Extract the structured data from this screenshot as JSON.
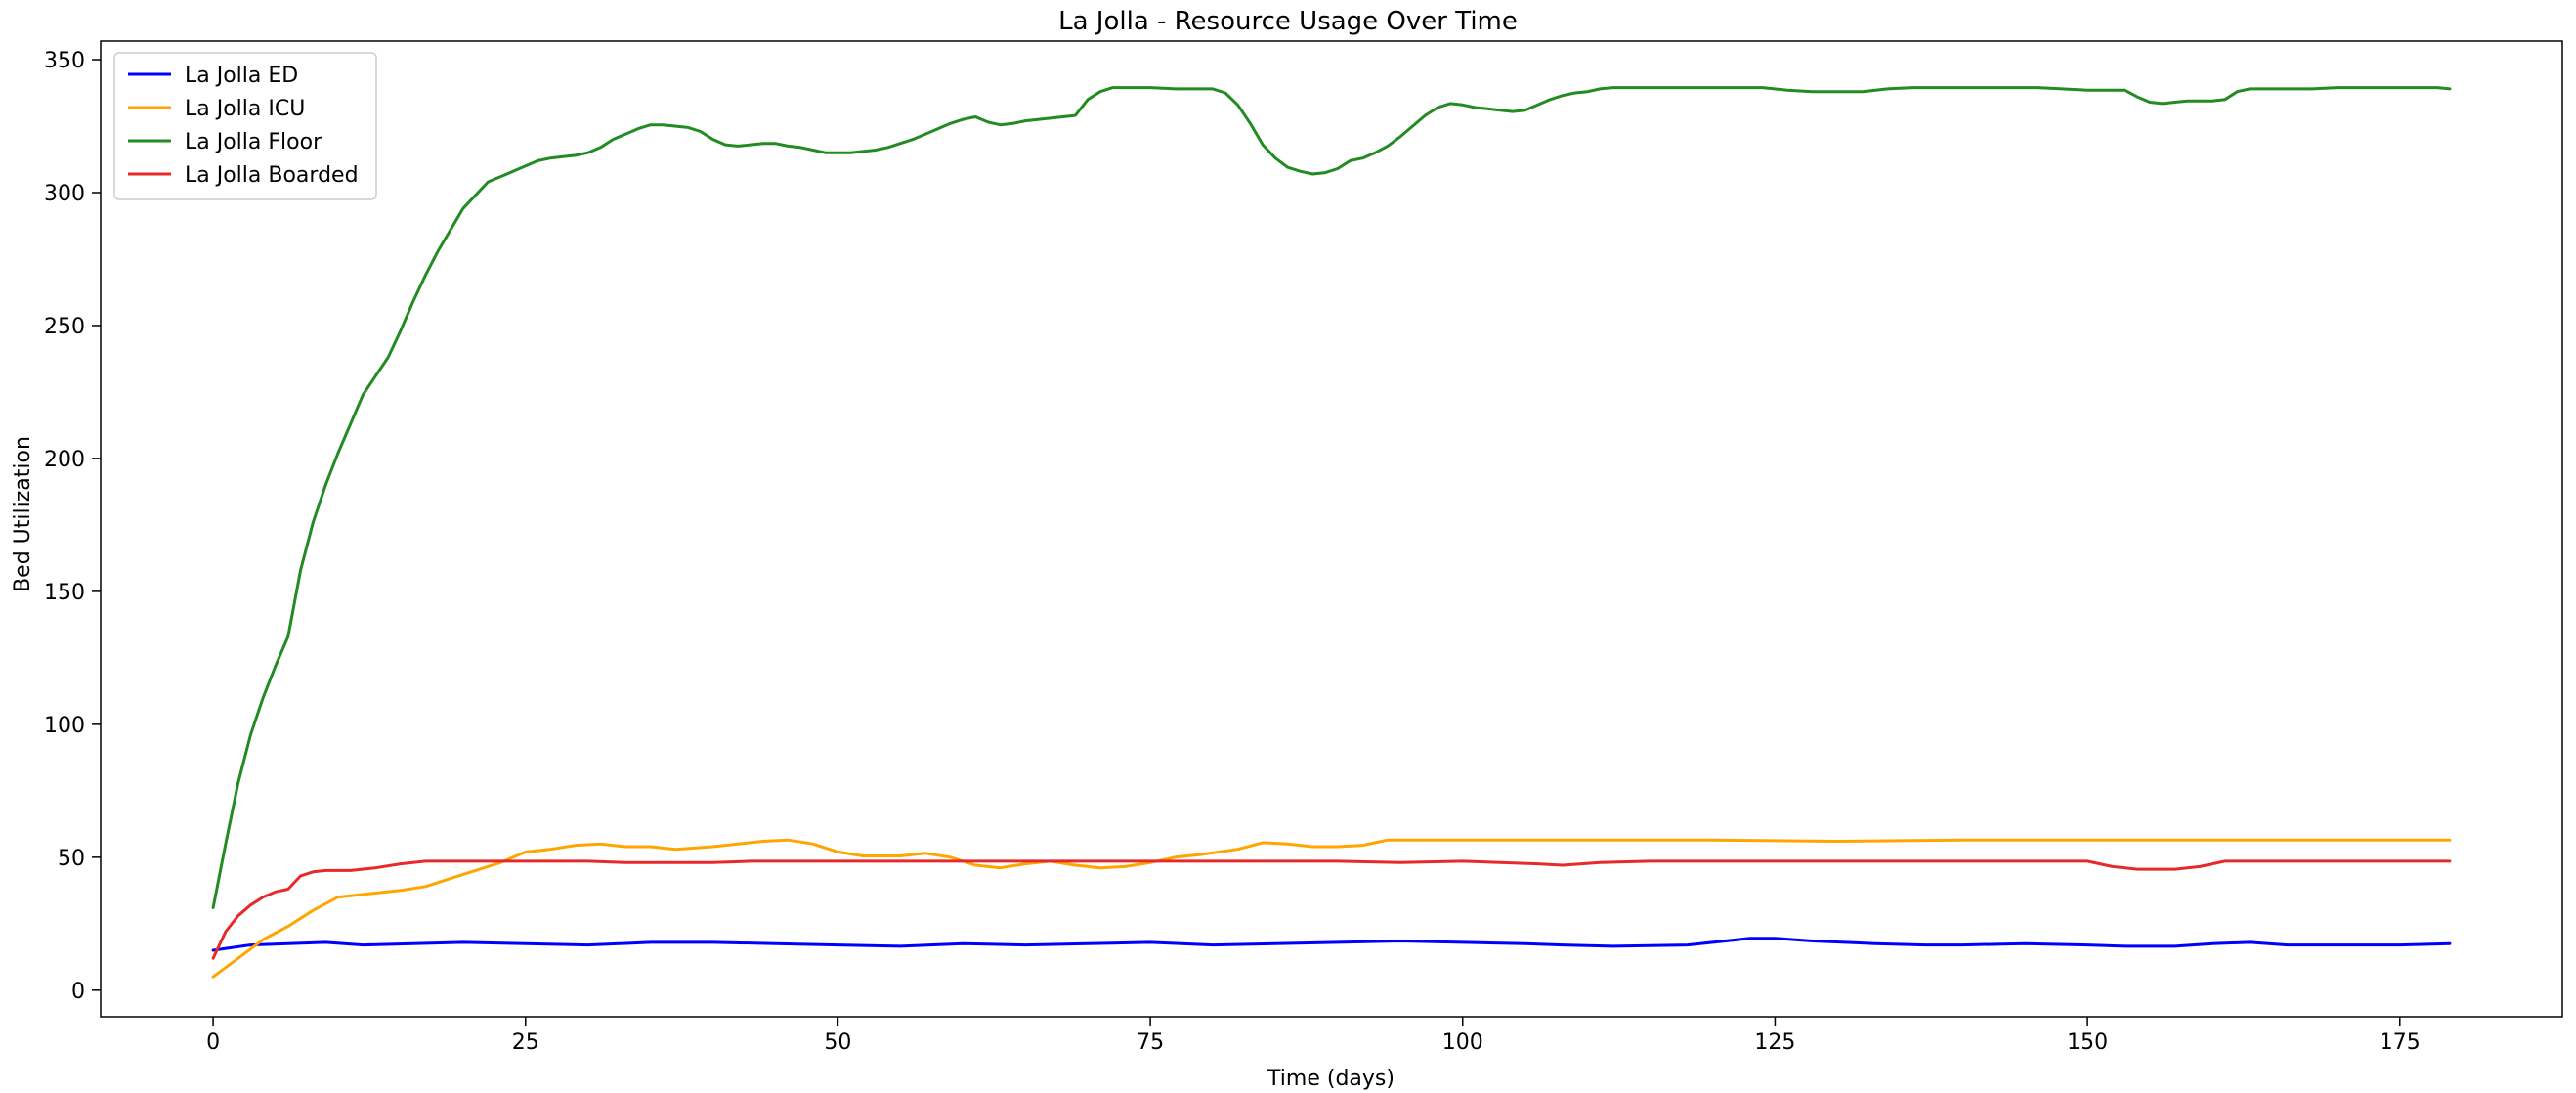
{
  "chart_data": {
    "type": "line",
    "title": "La Jolla - Resource Usage Over Time",
    "xlabel": "Time (days)",
    "ylabel": "Bed Utilization",
    "xlim": [
      -9,
      188
    ],
    "ylim": [
      -10,
      357
    ],
    "xticks": [
      0,
      25,
      50,
      75,
      100,
      125,
      150,
      175
    ],
    "yticks": [
      0,
      50,
      100,
      150,
      200,
      250,
      300,
      350
    ],
    "grid": false,
    "legend_position": "top-left",
    "series": [
      {
        "name": "La Jolla ED",
        "color": "#0000ff",
        "points": [
          [
            0,
            15
          ],
          [
            3,
            17
          ],
          [
            6,
            17.5
          ],
          [
            9,
            18
          ],
          [
            12,
            17
          ],
          [
            16,
            17.5
          ],
          [
            20,
            18
          ],
          [
            25,
            17.5
          ],
          [
            30,
            17
          ],
          [
            35,
            18
          ],
          [
            40,
            18
          ],
          [
            45,
            17.5
          ],
          [
            50,
            17
          ],
          [
            55,
            16.5
          ],
          [
            60,
            17.5
          ],
          [
            65,
            17
          ],
          [
            70,
            17.5
          ],
          [
            75,
            18
          ],
          [
            80,
            17
          ],
          [
            85,
            17.5
          ],
          [
            90,
            18
          ],
          [
            95,
            18.5
          ],
          [
            100,
            18
          ],
          [
            105,
            17.5
          ],
          [
            108,
            17
          ],
          [
            112,
            16.5
          ],
          [
            118,
            17
          ],
          [
            123,
            19.5
          ],
          [
            125,
            19.5
          ],
          [
            128,
            18.5
          ],
          [
            133,
            17.5
          ],
          [
            137,
            17
          ],
          [
            140,
            17
          ],
          [
            145,
            17.5
          ],
          [
            150,
            17
          ],
          [
            153,
            16.5
          ],
          [
            157,
            16.5
          ],
          [
            160,
            17.5
          ],
          [
            163,
            18
          ],
          [
            166,
            17
          ],
          [
            170,
            17
          ],
          [
            175,
            17
          ],
          [
            179,
            17.5
          ]
        ]
      },
      {
        "name": "La Jolla ICU",
        "color": "#ffa500",
        "points": [
          [
            0,
            5
          ],
          [
            2,
            12
          ],
          [
            4,
            19
          ],
          [
            6,
            24
          ],
          [
            8,
            30
          ],
          [
            10,
            35
          ],
          [
            12,
            36
          ],
          [
            15,
            37.5
          ],
          [
            17,
            39
          ],
          [
            19,
            42
          ],
          [
            21,
            45
          ],
          [
            23,
            48
          ],
          [
            25,
            52
          ],
          [
            27,
            53
          ],
          [
            29,
            54.5
          ],
          [
            31,
            55
          ],
          [
            33,
            54
          ],
          [
            35,
            54
          ],
          [
            37,
            53
          ],
          [
            40,
            54
          ],
          [
            42,
            55
          ],
          [
            44,
            56
          ],
          [
            46,
            56.5
          ],
          [
            48,
            55
          ],
          [
            50,
            52
          ],
          [
            52,
            50.5
          ],
          [
            55,
            50.5
          ],
          [
            57,
            51.5
          ],
          [
            59,
            50
          ],
          [
            61,
            47
          ],
          [
            63,
            46
          ],
          [
            65,
            47.5
          ],
          [
            67,
            48.5
          ],
          [
            69,
            47
          ],
          [
            71,
            46
          ],
          [
            73,
            46.5
          ],
          [
            75,
            48
          ],
          [
            77,
            50
          ],
          [
            79,
            51
          ],
          [
            82,
            53
          ],
          [
            84,
            55.5
          ],
          [
            86,
            55
          ],
          [
            88,
            54
          ],
          [
            90,
            54
          ],
          [
            92,
            54.5
          ],
          [
            94,
            56.5
          ],
          [
            100,
            56.5
          ],
          [
            110,
            56.5
          ],
          [
            120,
            56.5
          ],
          [
            130,
            56
          ],
          [
            140,
            56.5
          ],
          [
            150,
            56.5
          ],
          [
            160,
            56.5
          ],
          [
            170,
            56.5
          ],
          [
            179,
            56.5
          ]
        ]
      },
      {
        "name": "La Jolla Floor",
        "color": "#228b22",
        "points": [
          [
            0,
            31
          ],
          [
            1,
            55
          ],
          [
            2,
            78
          ],
          [
            3,
            96
          ],
          [
            4,
            110
          ],
          [
            5,
            122
          ],
          [
            6,
            133
          ],
          [
            7,
            158
          ],
          [
            8,
            176
          ],
          [
            9,
            190
          ],
          [
            10,
            202
          ],
          [
            11,
            213
          ],
          [
            12,
            224
          ],
          [
            13,
            231
          ],
          [
            14,
            238
          ],
          [
            15,
            248
          ],
          [
            16,
            259
          ],
          [
            17,
            269
          ],
          [
            18,
            278
          ],
          [
            19,
            286
          ],
          [
            20,
            294
          ],
          [
            21,
            299
          ],
          [
            22,
            304
          ],
          [
            23,
            306
          ],
          [
            24,
            308
          ],
          [
            25,
            310
          ],
          [
            26,
            312
          ],
          [
            27,
            313
          ],
          [
            28,
            313.5
          ],
          [
            29,
            314
          ],
          [
            30,
            315
          ],
          [
            31,
            317
          ],
          [
            32,
            320
          ],
          [
            33,
            322
          ],
          [
            34,
            324
          ],
          [
            35,
            325.5
          ],
          [
            36,
            325.5
          ],
          [
            38,
            324.5
          ],
          [
            39,
            323
          ],
          [
            40,
            320
          ],
          [
            41,
            318
          ],
          [
            42,
            317.5
          ],
          [
            43,
            318
          ],
          [
            44,
            318.5
          ],
          [
            45,
            318.5
          ],
          [
            46,
            317.5
          ],
          [
            47,
            317
          ],
          [
            48,
            316
          ],
          [
            49,
            315
          ],
          [
            50,
            315
          ],
          [
            51,
            315
          ],
          [
            52,
            315.5
          ],
          [
            53,
            316
          ],
          [
            54,
            317
          ],
          [
            55,
            318.5
          ],
          [
            56,
            320
          ],
          [
            57,
            322
          ],
          [
            58,
            324
          ],
          [
            59,
            326
          ],
          [
            60,
            327.5
          ],
          [
            61,
            328.5
          ],
          [
            62,
            326.5
          ],
          [
            63,
            325.5
          ],
          [
            64,
            326
          ],
          [
            65,
            327
          ],
          [
            66,
            327.5
          ],
          [
            67,
            328
          ],
          [
            68,
            328.5
          ],
          [
            69,
            329
          ],
          [
            70,
            335
          ],
          [
            71,
            338
          ],
          [
            72,
            339.5
          ],
          [
            73,
            339.5
          ],
          [
            75,
            339.5
          ],
          [
            77,
            339
          ],
          [
            80,
            339
          ],
          [
            81,
            337.5
          ],
          [
            82,
            333
          ],
          [
            83,
            326
          ],
          [
            84,
            318
          ],
          [
            85,
            313
          ],
          [
            86,
            309.5
          ],
          [
            87,
            308
          ],
          [
            88,
            307
          ],
          [
            89,
            307.5
          ],
          [
            90,
            309
          ],
          [
            91,
            312
          ],
          [
            92,
            313
          ],
          [
            93,
            315
          ],
          [
            94,
            317.5
          ],
          [
            95,
            321
          ],
          [
            96,
            325
          ],
          [
            97,
            329
          ],
          [
            98,
            332
          ],
          [
            99,
            333.5
          ],
          [
            100,
            333
          ],
          [
            101,
            332
          ],
          [
            102,
            331.5
          ],
          [
            103,
            331
          ],
          [
            104,
            330.5
          ],
          [
            105,
            331
          ],
          [
            106,
            333
          ],
          [
            107,
            335
          ],
          [
            108,
            336.5
          ],
          [
            109,
            337.5
          ],
          [
            110,
            338
          ],
          [
            111,
            339
          ],
          [
            112,
            339.5
          ],
          [
            115,
            339.5
          ],
          [
            120,
            339.5
          ],
          [
            124,
            339.5
          ],
          [
            126,
            338.5
          ],
          [
            128,
            338
          ],
          [
            132,
            338
          ],
          [
            134,
            339
          ],
          [
            136,
            339.5
          ],
          [
            140,
            339.5
          ],
          [
            146,
            339.5
          ],
          [
            148,
            339
          ],
          [
            150,
            338.5
          ],
          [
            153,
            338.5
          ],
          [
            154,
            336
          ],
          [
            155,
            334
          ],
          [
            156,
            333.5
          ],
          [
            157,
            334
          ],
          [
            158,
            334.5
          ],
          [
            160,
            334.5
          ],
          [
            161,
            335
          ],
          [
            162,
            338
          ],
          [
            163,
            339
          ],
          [
            164,
            339
          ],
          [
            168,
            339
          ],
          [
            170,
            339.5
          ],
          [
            175,
            339.5
          ],
          [
            178,
            339.5
          ],
          [
            179,
            339
          ]
        ]
      },
      {
        "name": "La Jolla Boarded",
        "color": "#e8292b",
        "points": [
          [
            0,
            12
          ],
          [
            1,
            22
          ],
          [
            2,
            28
          ],
          [
            3,
            32
          ],
          [
            4,
            35
          ],
          [
            5,
            37
          ],
          [
            6,
            38
          ],
          [
            7,
            43
          ],
          [
            8,
            44.5
          ],
          [
            9,
            45
          ],
          [
            11,
            45
          ],
          [
            13,
            46
          ],
          [
            15,
            47.5
          ],
          [
            17,
            48.5
          ],
          [
            20,
            48.5
          ],
          [
            25,
            48.5
          ],
          [
            30,
            48.5
          ],
          [
            33,
            48
          ],
          [
            38,
            48
          ],
          [
            40,
            48
          ],
          [
            43,
            48.5
          ],
          [
            50,
            48.5
          ],
          [
            60,
            48.5
          ],
          [
            70,
            48.5
          ],
          [
            80,
            48.5
          ],
          [
            90,
            48.5
          ],
          [
            95,
            48
          ],
          [
            100,
            48.5
          ],
          [
            103,
            48
          ],
          [
            106,
            47.5
          ],
          [
            108,
            47
          ],
          [
            111,
            48
          ],
          [
            115,
            48.5
          ],
          [
            120,
            48.5
          ],
          [
            130,
            48.5
          ],
          [
            140,
            48.5
          ],
          [
            150,
            48.5
          ],
          [
            152,
            46.5
          ],
          [
            154,
            45.5
          ],
          [
            157,
            45.5
          ],
          [
            159,
            46.5
          ],
          [
            161,
            48.5
          ],
          [
            165,
            48.5
          ],
          [
            170,
            48.5
          ],
          [
            179,
            48.5
          ]
        ]
      }
    ]
  }
}
